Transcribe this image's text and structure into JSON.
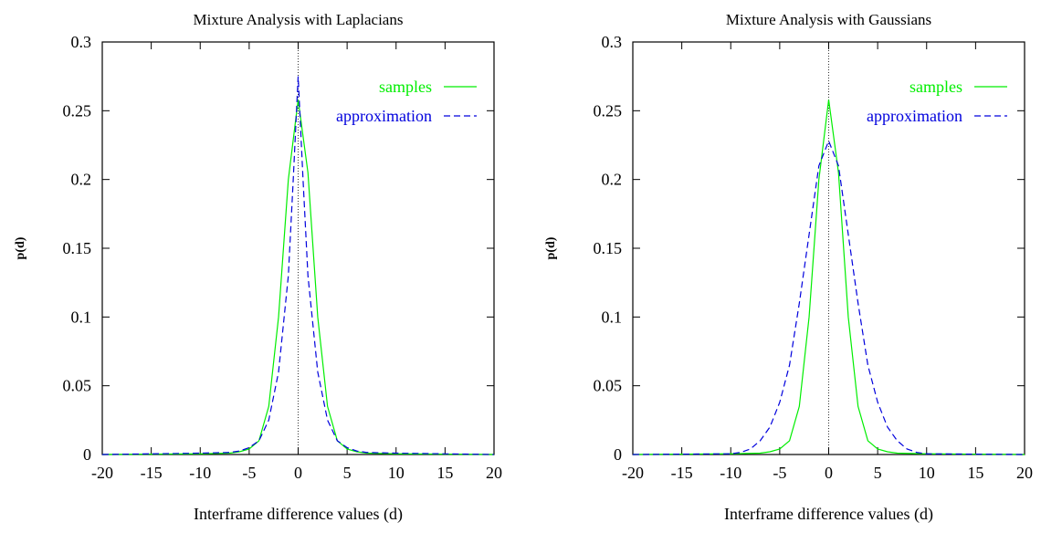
{
  "chart_data": [
    {
      "type": "line",
      "title": "Mixture Analysis with Laplacians",
      "xlabel": "Interframe difference values (d)",
      "ylabel": "p(d)",
      "xlim": [
        -20,
        20
      ],
      "ylim": [
        0,
        0.3
      ],
      "xticks": [
        -20,
        -15,
        -10,
        -5,
        0,
        5,
        10,
        15,
        20
      ],
      "yticks": [
        0,
        0.05,
        0.1,
        0.15,
        0.2,
        0.25,
        0.3
      ],
      "grid": false,
      "zero_line": true,
      "legend": "top-right",
      "series": [
        {
          "name": "samples",
          "color": "#00ee00",
          "dash": "solid",
          "x": [
            -20,
            -10,
            -7,
            -6,
            -5,
            -4,
            -3,
            -2,
            -1,
            0,
            1,
            2,
            3,
            4,
            5,
            6,
            7,
            10,
            20
          ],
          "y": [
            0.0,
            0.0005,
            0.001,
            0.002,
            0.004,
            0.01,
            0.035,
            0.1,
            0.2,
            0.258,
            0.205,
            0.1,
            0.035,
            0.01,
            0.004,
            0.002,
            0.001,
            0.0005,
            0.0
          ]
        },
        {
          "name": "approximation",
          "color": "#0000dd",
          "dash": "dashed",
          "x": [
            -20,
            -10,
            -7,
            -6,
            -5,
            -4,
            -3,
            -2,
            -1,
            -0.5,
            0,
            0.5,
            1,
            2,
            3,
            4,
            5,
            6,
            7,
            10,
            20
          ],
          "y": [
            0.0,
            0.001,
            0.0015,
            0.0025,
            0.005,
            0.01,
            0.025,
            0.06,
            0.13,
            0.2,
            0.275,
            0.2,
            0.13,
            0.06,
            0.025,
            0.01,
            0.005,
            0.0025,
            0.0015,
            0.001,
            0.0
          ]
        }
      ]
    },
    {
      "type": "line",
      "title": "Mixture Analysis with Gaussians",
      "xlabel": "Interframe difference values (d)",
      "ylabel": "p(d)",
      "xlim": [
        -20,
        20
      ],
      "ylim": [
        0,
        0.3
      ],
      "xticks": [
        -20,
        -15,
        -10,
        -5,
        0,
        5,
        10,
        15,
        20
      ],
      "yticks": [
        0,
        0.05,
        0.1,
        0.15,
        0.2,
        0.25,
        0.3
      ],
      "grid": false,
      "zero_line": true,
      "legend": "top-right",
      "series": [
        {
          "name": "samples",
          "color": "#00ee00",
          "dash": "solid",
          "x": [
            -20,
            -10,
            -7,
            -6,
            -5,
            -4,
            -3,
            -2,
            -1,
            0,
            1,
            2,
            3,
            4,
            5,
            6,
            7,
            10,
            20
          ],
          "y": [
            0.0,
            0.0005,
            0.001,
            0.002,
            0.004,
            0.01,
            0.035,
            0.1,
            0.2,
            0.258,
            0.205,
            0.1,
            0.035,
            0.01,
            0.004,
            0.002,
            0.001,
            0.0005,
            0.0
          ]
        },
        {
          "name": "approximation",
          "color": "#0000dd",
          "dash": "dashed",
          "x": [
            -20,
            -10,
            -9,
            -8,
            -7,
            -6,
            -5,
            -4,
            -3,
            -2,
            -1,
            0,
            1,
            2,
            3,
            4,
            5,
            6,
            7,
            8,
            9,
            10,
            20
          ],
          "y": [
            0.0,
            0.0005,
            0.0015,
            0.004,
            0.01,
            0.02,
            0.038,
            0.065,
            0.11,
            0.16,
            0.21,
            0.228,
            0.21,
            0.16,
            0.11,
            0.065,
            0.038,
            0.02,
            0.01,
            0.004,
            0.0015,
            0.0005,
            0.0
          ]
        }
      ]
    }
  ]
}
